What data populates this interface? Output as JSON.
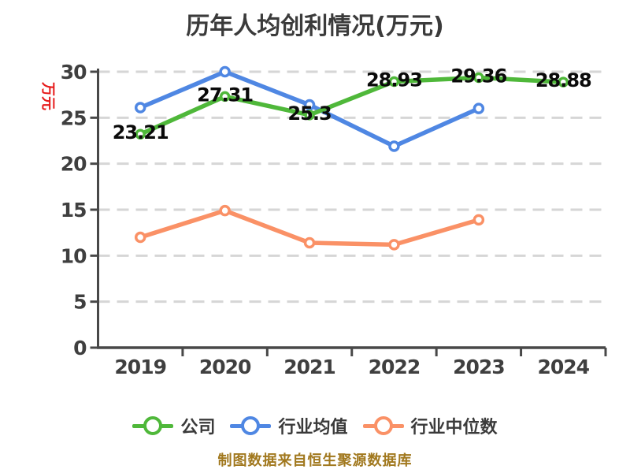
{
  "title": "历年人均创利情况(万元)",
  "y_axis_unit": "万元",
  "footer": {
    "text": "制图数据来自恒生聚源数据库",
    "color": "#a1781e"
  },
  "colors": {
    "unit_label": "#e61919",
    "axis": "#484848",
    "tick_text": "#3f3f3f",
    "grid": "#d6d6d6",
    "data_label": "#0a0a0a"
  },
  "legend": {
    "items": [
      {
        "label": "公司"
      },
      {
        "label": "行业均值"
      },
      {
        "label": "行业中位数"
      }
    ]
  },
  "chart_data": {
    "type": "line",
    "title": "历年人均创利情况(万元)",
    "xlabel": "",
    "ylabel": "万元",
    "categories": [
      "2019",
      "2020",
      "2021",
      "2022",
      "2023",
      "2024"
    ],
    "series": [
      {
        "name": "公司",
        "color": "#4fb83a",
        "values": [
          23.21,
          27.31,
          25.3,
          28.93,
          29.36,
          28.88
        ],
        "labels": [
          "23.21",
          "27.31",
          "25.3",
          "28.93",
          "29.36",
          "28.88"
        ]
      },
      {
        "name": "行业均值",
        "color": "#4f87e3",
        "values": [
          26.1,
          30.0,
          26.4,
          21.9,
          26.0,
          null
        ],
        "labels": null
      },
      {
        "name": "行业中位数",
        "color": "#fa9166",
        "values": [
          12.0,
          14.9,
          11.4,
          11.2,
          13.9,
          null
        ],
        "labels": null
      }
    ],
    "ylim": [
      0,
      30
    ],
    "yticks": [
      0,
      5,
      10,
      15,
      20,
      25,
      30
    ],
    "grid": "horizontal-dashed",
    "legend_position": "bottom"
  }
}
